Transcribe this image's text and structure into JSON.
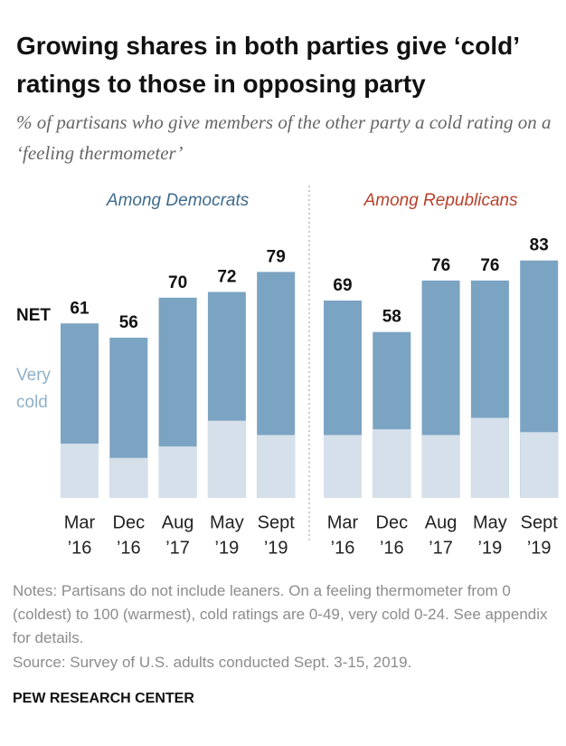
{
  "chart_data": {
    "type": "bar",
    "title": "Growing shares in both parties give ‘cold’ ratings to those in opposing party",
    "subtitle": "% of partisans who give members of the other party a cold rating on a ‘feeling thermometer’",
    "ylim": [
      0,
      100
    ],
    "categories": [
      [
        "Mar",
        "’16"
      ],
      [
        "Dec",
        "’16"
      ],
      [
        "Aug",
        "’17"
      ],
      [
        "May",
        "’19"
      ],
      [
        "Sept",
        "’19"
      ]
    ],
    "panels": [
      {
        "title": "Among Democrats",
        "title_color": "#3f6b8c",
        "series": [
          {
            "name": "NET",
            "color": "#7ba3c2",
            "values": [
              61,
              56,
              70,
              72,
              79
            ]
          },
          {
            "name": "Very cold",
            "color": "#d5e0ea",
            "values": [
              19,
              14,
              18,
              27,
              22
            ]
          }
        ]
      },
      {
        "title": "Among Republicans",
        "title_color": "#b8402a",
        "series": [
          {
            "name": "NET",
            "color": "#7ba3c2",
            "values": [
              69,
              58,
              76,
              76,
              83
            ]
          },
          {
            "name": "Very cold",
            "color": "#d5e0ea",
            "values": [
              22,
              24,
              22,
              28,
              23
            ]
          }
        ]
      }
    ],
    "notes": "Notes: Partisans do not include leaners. On a feeling thermometer from 0 (coldest) to 100 (warmest), cold ratings are 0-49, very cold 0-24. See appendix for details.",
    "source": "Source: Survey of U.S. adults conducted Sept. 3-15, 2019.",
    "credit": "PEW RESEARCH CENTER"
  }
}
